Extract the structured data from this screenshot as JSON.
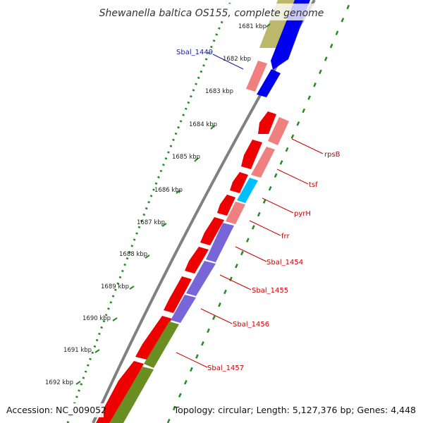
{
  "title": "Shewanella baltica OS155, complete genome",
  "ticks": [
    "1681 kbp",
    "1682 kbp",
    "1683 kbp",
    "1684 kbp",
    "1685 kbp",
    "1686 kbp",
    "1687 kbp",
    "1688 kbp",
    "1689 kbp",
    "1690 kbp",
    "1691 kbp",
    "1692 kbp"
  ],
  "gene_labels": [
    "Sbal_1449",
    "rpsB",
    "tsf",
    "pyrH",
    "frr",
    "Sbal_1454",
    "Sbal_1455",
    "Sbal_1456",
    "Sbal_1457"
  ],
  "footer": {
    "accession": "Accession: NC_009052",
    "topology": "Topology: circular; Length: 5,127,376 bp; Genes: 4,448"
  },
  "colors": {
    "cds_red": "#ee0000",
    "cds_pink": "#f08080",
    "cds_blue": "#0000ee",
    "cds_cyan": "#00bfff",
    "cds_purple": "#7866d8",
    "cds_olive": "#6b8e23",
    "cds_khaki": "#bdb76b",
    "backbone": "#808080",
    "gc_dots": "#228b22",
    "label_red": "#cc0000",
    "label_blue": "#1a1aa6"
  }
}
